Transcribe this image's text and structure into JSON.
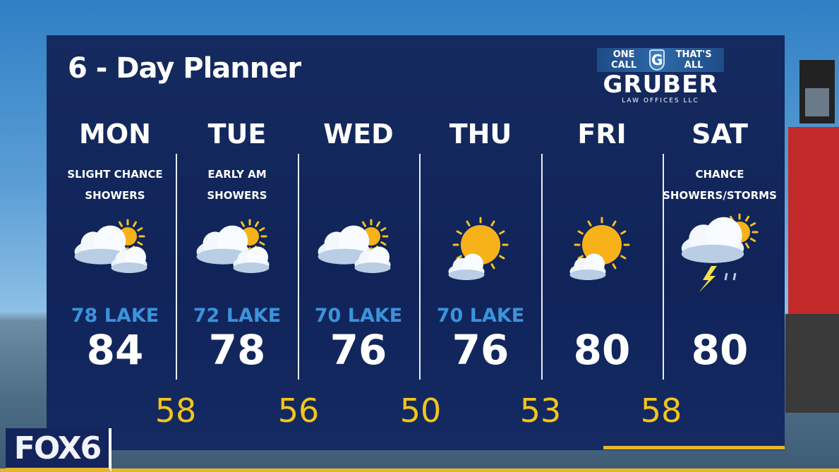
{
  "title": "6 - Day Planner",
  "sponsor": {
    "tagline_left": "ONE CALL",
    "shield_letter": "G",
    "tagline_right": "THAT'S ALL",
    "name": "GRUBER",
    "sub": "LAW OFFICES LLC"
  },
  "station_logo": "FOX6",
  "colors": {
    "panel": "#10245a",
    "low": "#f2c51c",
    "lake": "#3b93dc",
    "accent": "#e8b62d"
  },
  "days": [
    {
      "day": "MON",
      "desc1": "SLIGHT CHANCE",
      "desc2": "SHOWERS",
      "icon": "partly-cloudy-icon",
      "lake": "78 LAKE",
      "high": "84"
    },
    {
      "day": "TUE",
      "desc1": "EARLY AM",
      "desc2": "SHOWERS",
      "icon": "partly-cloudy-icon",
      "lake": "72 LAKE",
      "high": "78"
    },
    {
      "day": "WED",
      "desc1": "",
      "desc2": "",
      "icon": "partly-cloudy-icon",
      "lake": "70 LAKE",
      "high": "76"
    },
    {
      "day": "THU",
      "desc1": "",
      "desc2": "",
      "icon": "mostly-sunny-icon",
      "lake": "70 LAKE",
      "high": "76"
    },
    {
      "day": "FRI",
      "desc1": "",
      "desc2": "",
      "icon": "mostly-sunny-icon",
      "lake": "",
      "high": "80"
    },
    {
      "day": "SAT",
      "desc1": "CHANCE",
      "desc2": "SHOWERS/STORMS",
      "icon": "thunderstorm-icon",
      "lake": "",
      "high": "80"
    }
  ],
  "lows": [
    "58",
    "56",
    "50",
    "53",
    "58"
  ]
}
